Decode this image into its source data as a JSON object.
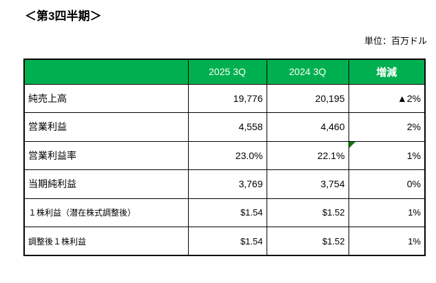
{
  "page": {
    "title": "＜第3四半期＞",
    "unit_label": "単位：百万ドル"
  },
  "table": {
    "header": {
      "label": "",
      "col_2025": "2025 3Q",
      "col_2024": "2024 3Q",
      "col_change": "増減"
    },
    "rows": [
      {
        "label": "純売上高",
        "q2025": "19,776",
        "q2024": "20,195",
        "change": "▲2%"
      },
      {
        "label": "営業利益",
        "q2025": "4,558",
        "q2024": "4,460",
        "change": "2%"
      },
      {
        "label": "営業利益率",
        "q2025": "23.0%",
        "q2024": "22.1%",
        "change": "1%",
        "has_indicator": true
      },
      {
        "label": "当期純利益",
        "q2025": "3,769",
        "q2024": "3,754",
        "change": "0%"
      },
      {
        "label": "１株利益（潜在株式調整後）",
        "q2025": "$1.54",
        "q2024": "$1.52",
        "change": "1%",
        "small": true
      },
      {
        "label": "調整後１株利益",
        "q2025": "$1.54",
        "q2024": "$1.52",
        "change": "1%",
        "small": true
      }
    ],
    "colors": {
      "header_bg": "#00B050",
      "header_text": "#FFFFFF",
      "border": "#000000",
      "indicator": "#008000",
      "negative_marker": "#000000"
    }
  }
}
